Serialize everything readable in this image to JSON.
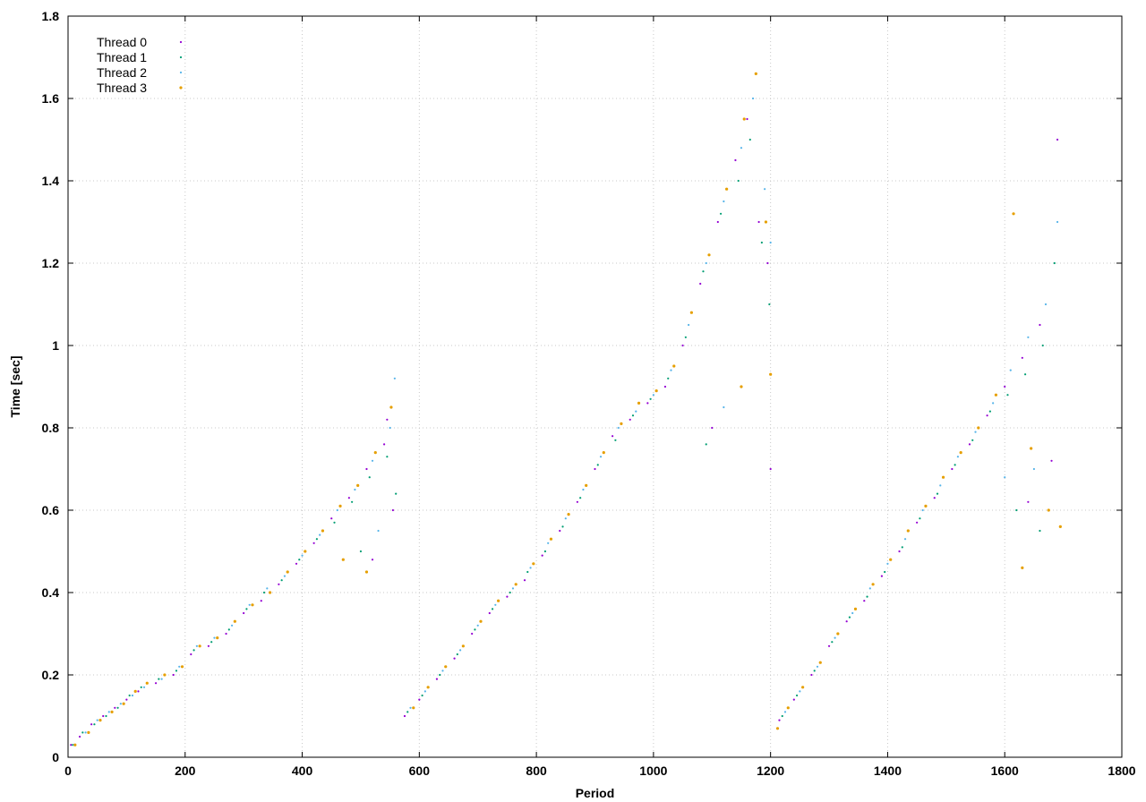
{
  "chart_data": {
    "type": "scatter",
    "title": "",
    "xlabel": "Period",
    "ylabel": "Time [sec]",
    "xlim": [
      0,
      1800
    ],
    "ylim": [
      0,
      1.8
    ],
    "x_ticks": [
      0,
      200,
      400,
      600,
      800,
      1000,
      1200,
      1400,
      1600,
      1800
    ],
    "y_ticks": [
      0,
      0.2,
      0.4,
      0.6,
      0.8,
      1,
      1.2,
      1.4,
      1.6,
      1.8
    ],
    "x_tick_labels": [
      "0",
      "200",
      "400",
      "600",
      "800",
      "1000",
      "1200",
      "1400",
      "1600",
      "1800"
    ],
    "y_tick_labels": [
      "0",
      "0.2",
      "0.4",
      "0.6",
      "0.8",
      "1",
      "1.2",
      "1.4",
      "1.6",
      "1.8"
    ],
    "grid": true,
    "legend_position": "top-left",
    "series": [
      {
        "name": "Thread 0",
        "color": "#9400d3",
        "points": [
          [
            5,
            0.03
          ],
          [
            20,
            0.05
          ],
          [
            40,
            0.08
          ],
          [
            60,
            0.1
          ],
          [
            80,
            0.12
          ],
          [
            100,
            0.14
          ],
          [
            120,
            0.16
          ],
          [
            150,
            0.18
          ],
          [
            180,
            0.2
          ],
          [
            210,
            0.25
          ],
          [
            240,
            0.27
          ],
          [
            270,
            0.3
          ],
          [
            300,
            0.35
          ],
          [
            330,
            0.38
          ],
          [
            360,
            0.42
          ],
          [
            390,
            0.47
          ],
          [
            420,
            0.52
          ],
          [
            450,
            0.58
          ],
          [
            480,
            0.63
          ],
          [
            510,
            0.7
          ],
          [
            540,
            0.76
          ],
          [
            555,
            0.6
          ],
          [
            520,
            0.48
          ],
          [
            545,
            0.82
          ],
          [
            575,
            0.1
          ],
          [
            600,
            0.14
          ],
          [
            630,
            0.19
          ],
          [
            660,
            0.24
          ],
          [
            690,
            0.3
          ],
          [
            720,
            0.35
          ],
          [
            750,
            0.39
          ],
          [
            780,
            0.43
          ],
          [
            810,
            0.49
          ],
          [
            840,
            0.55
          ],
          [
            870,
            0.62
          ],
          [
            900,
            0.7
          ],
          [
            930,
            0.78
          ],
          [
            960,
            0.82
          ],
          [
            990,
            0.86
          ],
          [
            1020,
            0.9
          ],
          [
            1050,
            1.0
          ],
          [
            1080,
            1.15
          ],
          [
            1110,
            1.3
          ],
          [
            1140,
            1.45
          ],
          [
            1160,
            1.55
          ],
          [
            1180,
            1.3
          ],
          [
            1195,
            1.2
          ],
          [
            1100,
            0.8
          ],
          [
            1200,
            0.7
          ],
          [
            1215,
            0.09
          ],
          [
            1240,
            0.14
          ],
          [
            1270,
            0.2
          ],
          [
            1300,
            0.27
          ],
          [
            1330,
            0.33
          ],
          [
            1360,
            0.38
          ],
          [
            1390,
            0.44
          ],
          [
            1420,
            0.5
          ],
          [
            1450,
            0.57
          ],
          [
            1480,
            0.63
          ],
          [
            1510,
            0.7
          ],
          [
            1540,
            0.76
          ],
          [
            1570,
            0.83
          ],
          [
            1600,
            0.9
          ],
          [
            1630,
            0.97
          ],
          [
            1660,
            1.05
          ],
          [
            1690,
            1.5
          ],
          [
            1680,
            0.72
          ],
          [
            1640,
            0.62
          ]
        ]
      },
      {
        "name": "Thread 1",
        "color": "#009e73",
        "points": [
          [
            8,
            0.03
          ],
          [
            25,
            0.06
          ],
          [
            45,
            0.08
          ],
          [
            65,
            0.1
          ],
          [
            85,
            0.12
          ],
          [
            105,
            0.15
          ],
          [
            125,
            0.17
          ],
          [
            155,
            0.19
          ],
          [
            185,
            0.21
          ],
          [
            215,
            0.26
          ],
          [
            245,
            0.28
          ],
          [
            275,
            0.31
          ],
          [
            305,
            0.36
          ],
          [
            335,
            0.4
          ],
          [
            365,
            0.43
          ],
          [
            395,
            0.48
          ],
          [
            425,
            0.53
          ],
          [
            455,
            0.57
          ],
          [
            485,
            0.62
          ],
          [
            515,
            0.68
          ],
          [
            545,
            0.73
          ],
          [
            560,
            0.64
          ],
          [
            500,
            0.5
          ],
          [
            580,
            0.11
          ],
          [
            605,
            0.15
          ],
          [
            635,
            0.2
          ],
          [
            665,
            0.25
          ],
          [
            695,
            0.31
          ],
          [
            725,
            0.36
          ],
          [
            755,
            0.4
          ],
          [
            785,
            0.45
          ],
          [
            815,
            0.5
          ],
          [
            845,
            0.56
          ],
          [
            875,
            0.63
          ],
          [
            905,
            0.71
          ],
          [
            935,
            0.77
          ],
          [
            965,
            0.83
          ],
          [
            995,
            0.87
          ],
          [
            1025,
            0.92
          ],
          [
            1055,
            1.02
          ],
          [
            1085,
            1.18
          ],
          [
            1115,
            1.32
          ],
          [
            1145,
            1.4
          ],
          [
            1165,
            1.5
          ],
          [
            1185,
            1.25
          ],
          [
            1198,
            1.1
          ],
          [
            1090,
            0.76
          ],
          [
            1220,
            0.1
          ],
          [
            1245,
            0.15
          ],
          [
            1275,
            0.21
          ],
          [
            1305,
            0.28
          ],
          [
            1335,
            0.34
          ],
          [
            1365,
            0.39
          ],
          [
            1395,
            0.45
          ],
          [
            1425,
            0.51
          ],
          [
            1455,
            0.58
          ],
          [
            1485,
            0.64
          ],
          [
            1515,
            0.71
          ],
          [
            1545,
            0.77
          ],
          [
            1575,
            0.84
          ],
          [
            1605,
            0.88
          ],
          [
            1635,
            0.93
          ],
          [
            1665,
            1.0
          ],
          [
            1685,
            1.2
          ],
          [
            1660,
            0.55
          ],
          [
            1620,
            0.6
          ]
        ]
      },
      {
        "name": "Thread 2",
        "color": "#56b4e9",
        "points": [
          [
            10,
            0.03
          ],
          [
            30,
            0.06
          ],
          [
            50,
            0.09
          ],
          [
            70,
            0.11
          ],
          [
            90,
            0.13
          ],
          [
            110,
            0.15
          ],
          [
            130,
            0.17
          ],
          [
            160,
            0.19
          ],
          [
            190,
            0.22
          ],
          [
            220,
            0.27
          ],
          [
            250,
            0.29
          ],
          [
            280,
            0.32
          ],
          [
            310,
            0.37
          ],
          [
            340,
            0.41
          ],
          [
            370,
            0.44
          ],
          [
            400,
            0.49
          ],
          [
            430,
            0.54
          ],
          [
            460,
            0.6
          ],
          [
            490,
            0.65
          ],
          [
            520,
            0.72
          ],
          [
            550,
            0.8
          ],
          [
            558,
            0.92
          ],
          [
            530,
            0.55
          ],
          [
            585,
            0.12
          ],
          [
            610,
            0.16
          ],
          [
            640,
            0.21
          ],
          [
            670,
            0.26
          ],
          [
            700,
            0.32
          ],
          [
            730,
            0.37
          ],
          [
            760,
            0.41
          ],
          [
            790,
            0.46
          ],
          [
            820,
            0.52
          ],
          [
            850,
            0.58
          ],
          [
            880,
            0.65
          ],
          [
            910,
            0.73
          ],
          [
            940,
            0.8
          ],
          [
            970,
            0.84
          ],
          [
            1000,
            0.88
          ],
          [
            1030,
            0.94
          ],
          [
            1060,
            1.05
          ],
          [
            1090,
            1.2
          ],
          [
            1120,
            1.35
          ],
          [
            1150,
            1.48
          ],
          [
            1170,
            1.6
          ],
          [
            1190,
            1.38
          ],
          [
            1200,
            1.25
          ],
          [
            1120,
            0.85
          ],
          [
            1225,
            0.11
          ],
          [
            1250,
            0.16
          ],
          [
            1280,
            0.22
          ],
          [
            1310,
            0.29
          ],
          [
            1340,
            0.35
          ],
          [
            1370,
            0.41
          ],
          [
            1400,
            0.47
          ],
          [
            1430,
            0.53
          ],
          [
            1460,
            0.6
          ],
          [
            1490,
            0.66
          ],
          [
            1520,
            0.73
          ],
          [
            1550,
            0.79
          ],
          [
            1580,
            0.86
          ],
          [
            1610,
            0.94
          ],
          [
            1640,
            1.02
          ],
          [
            1670,
            1.1
          ],
          [
            1690,
            1.3
          ],
          [
            1650,
            0.7
          ],
          [
            1600,
            0.68
          ]
        ]
      },
      {
        "name": "Thread 3",
        "color": "#e69f00",
        "points": [
          [
            12,
            0.03
          ],
          [
            35,
            0.06
          ],
          [
            55,
            0.09
          ],
          [
            75,
            0.11
          ],
          [
            95,
            0.13
          ],
          [
            115,
            0.16
          ],
          [
            135,
            0.18
          ],
          [
            165,
            0.2
          ],
          [
            195,
            0.22
          ],
          [
            225,
            0.27
          ],
          [
            255,
            0.29
          ],
          [
            285,
            0.33
          ],
          [
            315,
            0.37
          ],
          [
            345,
            0.4
          ],
          [
            375,
            0.45
          ],
          [
            405,
            0.5
          ],
          [
            435,
            0.55
          ],
          [
            465,
            0.61
          ],
          [
            495,
            0.66
          ],
          [
            525,
            0.74
          ],
          [
            552,
            0.85
          ],
          [
            510,
            0.45
          ],
          [
            470,
            0.48
          ],
          [
            590,
            0.12
          ],
          [
            615,
            0.17
          ],
          [
            645,
            0.22
          ],
          [
            675,
            0.27
          ],
          [
            705,
            0.33
          ],
          [
            735,
            0.38
          ],
          [
            765,
            0.42
          ],
          [
            795,
            0.47
          ],
          [
            825,
            0.53
          ],
          [
            855,
            0.59
          ],
          [
            885,
            0.66
          ],
          [
            915,
            0.74
          ],
          [
            945,
            0.81
          ],
          [
            975,
            0.86
          ],
          [
            1005,
            0.89
          ],
          [
            1035,
            0.95
          ],
          [
            1065,
            1.08
          ],
          [
            1095,
            1.22
          ],
          [
            1125,
            1.38
          ],
          [
            1155,
            1.55
          ],
          [
            1175,
            1.66
          ],
          [
            1192,
            1.3
          ],
          [
            1200,
            0.93
          ],
          [
            1150,
            0.9
          ],
          [
            1212,
            0.07
          ],
          [
            1230,
            0.12
          ],
          [
            1255,
            0.17
          ],
          [
            1285,
            0.23
          ],
          [
            1315,
            0.3
          ],
          [
            1345,
            0.36
          ],
          [
            1375,
            0.42
          ],
          [
            1405,
            0.48
          ],
          [
            1435,
            0.55
          ],
          [
            1465,
            0.61
          ],
          [
            1495,
            0.68
          ],
          [
            1525,
            0.74
          ],
          [
            1555,
            0.8
          ],
          [
            1585,
            0.88
          ],
          [
            1615,
            1.32
          ],
          [
            1645,
            0.75
          ],
          [
            1675,
            0.6
          ],
          [
            1695,
            0.56
          ],
          [
            1630,
            0.46
          ]
        ]
      }
    ]
  }
}
